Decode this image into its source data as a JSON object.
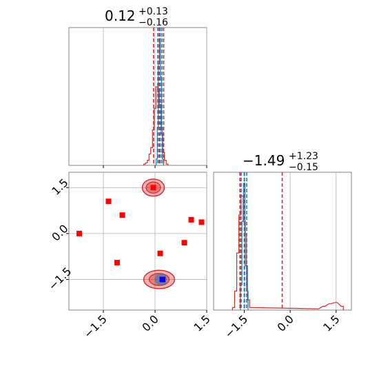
{
  "chart_data": {
    "type": "corner",
    "parameters": [
      {
        "title_value": "0.12",
        "title_plus": "+0.13",
        "title_minus": "−0.16",
        "quantiles_red": [
          -0.04,
          0.12,
          0.25
        ],
        "quantiles_blue": [
          0.08,
          0.15,
          0.2
        ],
        "hist_red": {
          "x": [
            -0.3,
            -0.25,
            -0.2,
            -0.15,
            -0.1,
            -0.05,
            0.0,
            0.05,
            0.1,
            0.15,
            0.2,
            0.25,
            0.3,
            0.35
          ],
          "y": [
            0.01,
            0.02,
            0.04,
            0.09,
            0.14,
            0.28,
            0.45,
            0.62,
            0.58,
            0.48,
            0.25,
            0.1,
            0.04,
            0.01
          ]
        },
        "hist_blue": {
          "x": [
            0.05,
            0.08,
            0.11,
            0.14,
            0.17,
            0.2,
            0.23
          ],
          "y": [
            0.05,
            0.3,
            0.8,
            1.0,
            0.7,
            0.3,
            0.05
          ]
        }
      },
      {
        "title_value": "−1.49",
        "title_plus": "+1.23",
        "title_minus": "−0.15",
        "quantiles_red": [
          -1.64,
          -1.49,
          -0.26
        ],
        "quantiles_blue": [
          -1.6,
          -1.5,
          -1.42
        ],
        "hist_red": {
          "x": [
            -1.85,
            -1.78,
            -1.71,
            -1.64,
            -1.57,
            -1.5,
            -1.43,
            -1.36,
            -1.29,
            0.9,
            1.1,
            1.3,
            1.5,
            1.7
          ],
          "y": [
            0.02,
            0.15,
            0.45,
            0.75,
            0.9,
            0.7,
            0.35,
            0.08,
            0.02,
            0.01,
            0.03,
            0.05,
            0.06,
            0.03
          ]
        },
        "hist_blue": {
          "x": [
            -1.6,
            -1.55,
            -1.5,
            -1.45,
            -1.4
          ],
          "y": [
            0.2,
            0.7,
            1.0,
            0.6,
            0.15
          ]
        }
      }
    ],
    "x_range_param1": [
      -2.5,
      1.5
    ],
    "x_range_param2": [
      -2.5,
      2.0
    ],
    "ticks": [
      -1.5,
      0.0,
      1.5
    ],
    "tick_labels": [
      "−1.5",
      "0.0",
      "1.5"
    ],
    "scatter_red_squares": [
      {
        "x": -2.2,
        "y": 0.0
      },
      {
        "x": -1.35,
        "y": 1.05
      },
      {
        "x": -0.95,
        "y": 0.6
      },
      {
        "x": -1.1,
        "y": -0.95
      },
      {
        "x": -0.05,
        "y": 1.5
      },
      {
        "x": 0.15,
        "y": -0.65
      },
      {
        "x": 0.85,
        "y": -0.3
      },
      {
        "x": 1.05,
        "y": 0.45
      },
      {
        "x": 1.35,
        "y": 0.37
      },
      {
        "x": 0.2,
        "y": -1.5
      }
    ],
    "blue_square": {
      "x": 0.22,
      "y": -1.5
    },
    "contours": [
      {
        "cx": -0.05,
        "cy": 1.5,
        "rx": 0.32,
        "ry": 0.28
      },
      {
        "cx": 0.12,
        "cy": -1.5,
        "rx": 0.45,
        "ry": 0.3
      }
    ],
    "colors": {
      "red": "#d62728",
      "blue": "#1f77b4",
      "marker_red": "#ff0000",
      "marker_blue": "#0000ff"
    },
    "grid": true
  }
}
